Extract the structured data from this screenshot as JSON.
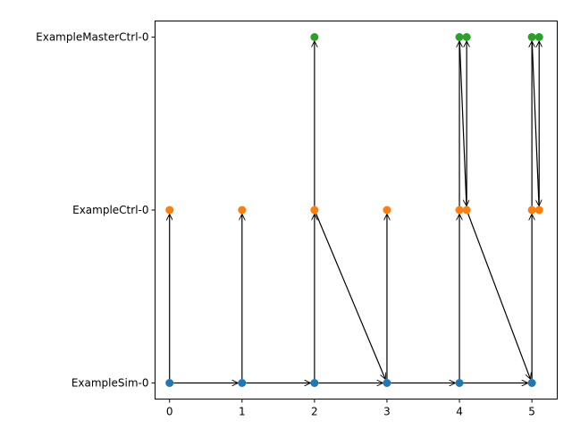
{
  "chart_data": {
    "type": "scatter",
    "title": "",
    "xlabel": "",
    "ylabel": "",
    "xlim": [
      -0.2,
      5.35
    ],
    "x_ticks": [
      0,
      1,
      2,
      3,
      4,
      5
    ],
    "x_tick_labels": [
      "0",
      "1",
      "2",
      "3",
      "4",
      "5"
    ],
    "y_categories": [
      "ExampleSim-0",
      "ExampleCtrl-0",
      "ExampleMasterCtrl-0"
    ],
    "grid": false,
    "legend": "none",
    "series": [
      {
        "color": "#1f77b4",
        "category": "ExampleSim-0",
        "x": [
          0,
          1,
          2,
          3,
          4,
          5
        ]
      },
      {
        "color": "#ff7f0e",
        "category": "ExampleCtrl-0",
        "x": [
          0,
          1,
          2,
          3,
          4,
          4.1,
          5,
          5.1
        ]
      },
      {
        "color": "#2ca02c",
        "category": "ExampleMasterCtrl-0",
        "x": [
          2,
          4,
          4.1,
          5,
          5.1
        ]
      }
    ],
    "arrows": [
      {
        "from": [
          0,
          "ExampleSim-0"
        ],
        "to": [
          1,
          "ExampleSim-0"
        ]
      },
      {
        "from": [
          1,
          "ExampleSim-0"
        ],
        "to": [
          2,
          "ExampleSim-0"
        ]
      },
      {
        "from": [
          2,
          "ExampleSim-0"
        ],
        "to": [
          3,
          "ExampleSim-0"
        ]
      },
      {
        "from": [
          3,
          "ExampleSim-0"
        ],
        "to": [
          4,
          "ExampleSim-0"
        ]
      },
      {
        "from": [
          4,
          "ExampleSim-0"
        ],
        "to": [
          5,
          "ExampleSim-0"
        ]
      },
      {
        "from": [
          0,
          "ExampleSim-0"
        ],
        "to": [
          0,
          "ExampleCtrl-0"
        ]
      },
      {
        "from": [
          1,
          "ExampleSim-0"
        ],
        "to": [
          1,
          "ExampleCtrl-0"
        ]
      },
      {
        "from": [
          2,
          "ExampleSim-0"
        ],
        "to": [
          2,
          "ExampleCtrl-0"
        ]
      },
      {
        "from": [
          3,
          "ExampleSim-0"
        ],
        "to": [
          3,
          "ExampleCtrl-0"
        ]
      },
      {
        "from": [
          4,
          "ExampleSim-0"
        ],
        "to": [
          4,
          "ExampleCtrl-0"
        ]
      },
      {
        "from": [
          5,
          "ExampleSim-0"
        ],
        "to": [
          5,
          "ExampleCtrl-0"
        ]
      },
      {
        "from": [
          2,
          "ExampleCtrl-0"
        ],
        "to": [
          2,
          "ExampleMasterCtrl-0"
        ]
      },
      {
        "from": [
          2,
          "ExampleCtrl-0"
        ],
        "to": [
          3,
          "ExampleSim-0"
        ]
      },
      {
        "from": [
          4,
          "ExampleCtrl-0"
        ],
        "to": [
          4,
          "ExampleMasterCtrl-0"
        ]
      },
      {
        "from": [
          4,
          "ExampleMasterCtrl-0"
        ],
        "to": [
          4.1,
          "ExampleCtrl-0"
        ]
      },
      {
        "from": [
          4.1,
          "ExampleCtrl-0"
        ],
        "to": [
          4.1,
          "ExampleMasterCtrl-0"
        ]
      },
      {
        "from": [
          4.1,
          "ExampleCtrl-0"
        ],
        "to": [
          5,
          "ExampleSim-0"
        ]
      },
      {
        "from": [
          5,
          "ExampleCtrl-0"
        ],
        "to": [
          5,
          "ExampleMasterCtrl-0"
        ]
      },
      {
        "from": [
          5,
          "ExampleMasterCtrl-0"
        ],
        "to": [
          5.1,
          "ExampleCtrl-0"
        ]
      },
      {
        "from": [
          5.1,
          "ExampleCtrl-0"
        ],
        "to": [
          5.1,
          "ExampleMasterCtrl-0"
        ]
      }
    ]
  }
}
